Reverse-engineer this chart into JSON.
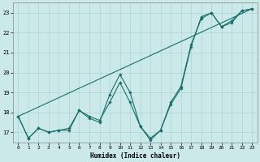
{
  "xlabel": "Humidex (Indice chaleur)",
  "xlim": [
    -0.5,
    23.5
  ],
  "ylim": [
    16.5,
    23.5
  ],
  "yticks": [
    17,
    18,
    19,
    20,
    21,
    22,
    23
  ],
  "xticks": [
    0,
    1,
    2,
    3,
    4,
    5,
    6,
    7,
    8,
    9,
    10,
    11,
    12,
    13,
    14,
    15,
    16,
    17,
    18,
    19,
    20,
    21,
    22,
    23
  ],
  "bg_color": "#cce9e9",
  "grid_color": "#b0d8d8",
  "line_color": "#1a6e6a",
  "line1_y": [
    17.8,
    16.7,
    17.2,
    17.0,
    17.1,
    17.1,
    18.1,
    17.7,
    17.5,
    18.9,
    19.9,
    19.0,
    17.3,
    16.6,
    17.1,
    18.4,
    19.2,
    21.3,
    22.8,
    23.0,
    22.3,
    22.5,
    23.1,
    23.2
  ],
  "line2_y": [
    17.8,
    16.7,
    17.2,
    17.0,
    17.1,
    17.2,
    18.1,
    17.8,
    17.6,
    18.5,
    19.5,
    18.5,
    17.3,
    16.7,
    17.1,
    18.5,
    19.3,
    21.4,
    22.7,
    23.0,
    22.3,
    22.6,
    23.1,
    23.2
  ],
  "line3_y": [
    17.8,
    23.2
  ]
}
